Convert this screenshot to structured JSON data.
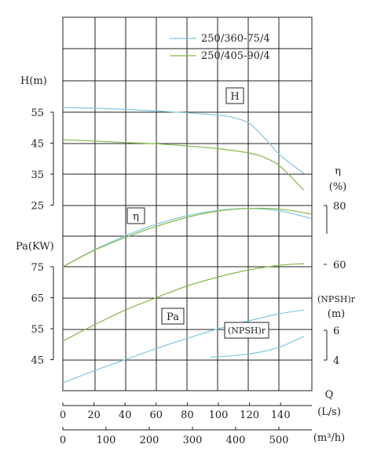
{
  "chart_data": {
    "type": "line",
    "title": "",
    "legend": {
      "position": "top-right",
      "items": [
        {
          "label": "250/360-75/4",
          "color": "#7ec8e0"
        },
        {
          "label": "250/405-90/4",
          "color": "#86b84a"
        }
      ]
    },
    "x_axis": {
      "label": "Q",
      "unit": "(L/s)",
      "range": [
        0,
        160
      ],
      "ticks": [
        "0",
        "20",
        "40",
        "60",
        "80",
        "100",
        "120",
        "140"
      ],
      "tick_values": [
        0,
        20,
        40,
        60,
        80,
        100,
        120,
        140
      ]
    },
    "x2_axis": {
      "unit": "(m³/h)",
      "ticks": [
        "0",
        "100",
        "200",
        "300",
        "400",
        "500"
      ],
      "tick_values": [
        0,
        100,
        200,
        300,
        400,
        500
      ]
    },
    "h_axis": {
      "label": "H(m)",
      "range": [
        25,
        55
      ],
      "ticks": [
        "55",
        "45",
        "35",
        "25"
      ],
      "tick_values": [
        55,
        45,
        35,
        25
      ]
    },
    "eff_axis": {
      "label": "η",
      "unit": "(%)",
      "range": [
        60,
        80
      ],
      "ticks": [
        "80",
        "60"
      ],
      "tick_values": [
        80,
        60
      ]
    },
    "pa_axis": {
      "label": "Pa(KW)",
      "range": [
        45,
        75
      ],
      "ticks": [
        "75",
        "65",
        "55",
        "45"
      ],
      "tick_values": [
        75,
        65,
        55,
        45
      ]
    },
    "npsh_axis": {
      "label": "(NPSH)r",
      "unit": "(m)",
      "range": [
        4,
        6
      ],
      "ticks": [
        "6",
        "4"
      ],
      "tick_values": [
        6,
        4
      ]
    },
    "curve_labels": {
      "h": "H",
      "eta": "η",
      "pa": "Pa",
      "npsh": "(NPSH)r"
    },
    "series": [
      {
        "name": "250/360-75/4",
        "curve": "H",
        "axis": "h",
        "x": [
          0,
          20,
          40,
          60,
          80,
          100,
          110,
          120,
          130,
          140,
          155
        ],
        "y": [
          56.5,
          56.3,
          55.9,
          55.4,
          54.8,
          54.0,
          53.2,
          51.3,
          46.5,
          41.0,
          35.2
        ]
      },
      {
        "name": "250/405-90/4",
        "curve": "H",
        "axis": "h",
        "x": [
          0,
          20,
          40,
          60,
          80,
          100,
          120,
          130,
          140,
          155
        ],
        "y": [
          46.1,
          45.7,
          45.2,
          44.8,
          44.1,
          43.2,
          41.8,
          40.3,
          37.4,
          29.8
        ],
        "note": ""
      },
      {
        "name": "250/360-75/4",
        "curve": "η",
        "axis": "eff",
        "x": [
          0,
          20,
          40,
          60,
          80,
          100,
          120,
          140,
          160
        ],
        "y": [
          40.0,
          50.9,
          60.1,
          67.7,
          73.4,
          76.8,
          78.1,
          76.4,
          71.4
        ]
      },
      {
        "name": "250/405-90/4",
        "curve": "η",
        "axis": "eff",
        "x": [
          0,
          20,
          40,
          60,
          80,
          100,
          120,
          140,
          160
        ],
        "y": [
          40.0,
          50.6,
          59.1,
          66.3,
          72.3,
          76.4,
          78.1,
          77.6,
          74.4
        ]
      },
      {
        "name": "250/405-90/4",
        "curve": "Pa",
        "axis": "pa",
        "x": [
          0,
          20,
          40,
          60,
          80,
          100,
          120,
          140,
          155
        ],
        "y": [
          51.0,
          56.2,
          61.0,
          65.0,
          68.8,
          71.7,
          74.0,
          75.5,
          76.0
        ]
      },
      {
        "name": "250/360-75/4",
        "curve": "Pa",
        "axis": "pa",
        "x": [
          0,
          20,
          40,
          60,
          80,
          100,
          120,
          140,
          155
        ],
        "y": [
          37.5,
          41.4,
          45.0,
          48.6,
          51.9,
          55.0,
          57.6,
          59.9,
          61.0
        ]
      },
      {
        "name": "250/360-75/4",
        "curve": "(NPSH)r",
        "axis": "npsh",
        "x": [
          95,
          110,
          125,
          140,
          155
        ],
        "y": [
          4.2,
          4.3,
          4.5,
          4.9,
          5.6
        ]
      }
    ]
  }
}
